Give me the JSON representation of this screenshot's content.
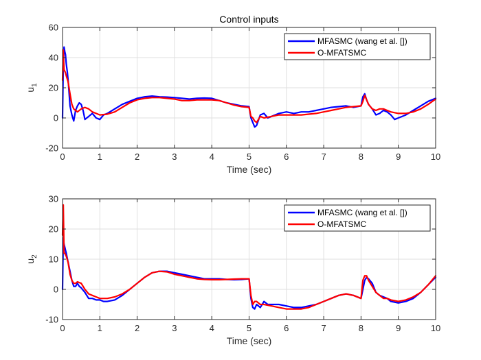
{
  "chart_data": [
    {
      "type": "line",
      "title": "Control inputs",
      "xlabel": "Time (sec)",
      "ylabel": "u",
      "ylabel_sub": "1",
      "xlim": [
        0,
        10
      ],
      "ylim": [
        -20,
        60
      ],
      "xticks": [
        0,
        1,
        2,
        3,
        4,
        5,
        6,
        7,
        8,
        9,
        10
      ],
      "yticks": [
        -20,
        0,
        20,
        40,
        60
      ],
      "grid": true,
      "legend_position": "top-right",
      "series": [
        {
          "name": "MFASMC (wang et al. [])",
          "color": "#0000ff",
          "x": [
            0,
            0.02,
            0.04,
            0.06,
            0.08,
            0.1,
            0.13,
            0.16,
            0.2,
            0.25,
            0.3,
            0.35,
            0.4,
            0.45,
            0.5,
            0.55,
            0.6,
            0.7,
            0.8,
            0.9,
            1.0,
            1.1,
            1.2,
            1.4,
            1.6,
            1.8,
            2.0,
            2.2,
            2.4,
            2.6,
            2.8,
            3.0,
            3.2,
            3.4,
            3.6,
            3.8,
            4.0,
            4.2,
            4.4,
            4.6,
            4.8,
            5.0,
            5.05,
            5.1,
            5.15,
            5.2,
            5.3,
            5.4,
            5.5,
            5.6,
            5.8,
            6.0,
            6.2,
            6.4,
            6.6,
            6.8,
            7.0,
            7.2,
            7.4,
            7.6,
            7.8,
            8.0,
            8.05,
            8.1,
            8.15,
            8.2,
            8.3,
            8.4,
            8.5,
            8.6,
            8.7,
            8.8,
            8.9,
            9.0,
            9.2,
            9.4,
            9.6,
            9.8,
            10.0
          ],
          "y": [
            0,
            35,
            47,
            44,
            42,
            36,
            30,
            22,
            8,
            2,
            -2,
            5,
            8,
            10,
            9,
            5,
            -1,
            1,
            3,
            0,
            -1,
            2,
            3,
            6,
            9,
            11,
            13,
            14,
            14.5,
            14,
            13.8,
            13.5,
            13,
            12.5,
            13,
            13.2,
            13,
            11.5,
            10,
            9,
            8,
            7.5,
            0,
            -3,
            -6,
            -5,
            2,
            3,
            0,
            1,
            3,
            4,
            3,
            4,
            4,
            5,
            6,
            7,
            7.5,
            8,
            7,
            8,
            14,
            16,
            12,
            9,
            6,
            2,
            3,
            5,
            4,
            2,
            -1,
            0,
            2,
            5,
            8,
            11,
            13
          ]
        },
        {
          "name": "O-MFATSMC",
          "color": "#ff0000",
          "x": [
            0,
            0.02,
            0.04,
            0.06,
            0.08,
            0.1,
            0.15,
            0.2,
            0.25,
            0.3,
            0.35,
            0.4,
            0.5,
            0.6,
            0.7,
            0.8,
            0.9,
            1.0,
            1.2,
            1.4,
            1.6,
            1.8,
            2.0,
            2.2,
            2.4,
            2.6,
            2.8,
            3.0,
            3.2,
            3.4,
            3.6,
            3.8,
            4.0,
            4.2,
            4.4,
            4.6,
            4.8,
            5.0,
            5.05,
            5.1,
            5.15,
            5.2,
            5.3,
            5.4,
            5.6,
            5.8,
            6.0,
            6.2,
            6.4,
            6.6,
            6.8,
            7.0,
            7.2,
            7.4,
            7.6,
            7.8,
            8.0,
            8.05,
            8.1,
            8.15,
            8.2,
            8.3,
            8.4,
            8.5,
            8.6,
            8.7,
            8.8,
            9.0,
            9.2,
            9.4,
            9.6,
            9.8,
            10.0
          ],
          "y": [
            25,
            45,
            32,
            31,
            30,
            28,
            24,
            16,
            9,
            6,
            5,
            4,
            6,
            7,
            6,
            4,
            3,
            2,
            2.5,
            4,
            7,
            10,
            12,
            13,
            13.5,
            13.5,
            13,
            12.5,
            11.5,
            11.5,
            12,
            12,
            12,
            11.5,
            10,
            8.5,
            7.5,
            7,
            1,
            0,
            -2,
            -3,
            1,
            0,
            1,
            2,
            2,
            2,
            2,
            2.5,
            3,
            4,
            5,
            6,
            7,
            7.5,
            8,
            11,
            15,
            12,
            9,
            6,
            5,
            6,
            6,
            5,
            4,
            3,
            3,
            4,
            6,
            9,
            12.5
          ]
        }
      ]
    },
    {
      "type": "line",
      "title": "",
      "xlabel": "Time (sec)",
      "ylabel": "u",
      "ylabel_sub": "2",
      "xlim": [
        0,
        10
      ],
      "ylim": [
        -10,
        30
      ],
      "xticks": [
        0,
        1,
        2,
        3,
        4,
        5,
        6,
        7,
        8,
        9,
        10
      ],
      "yticks": [
        -10,
        0,
        10,
        20,
        30
      ],
      "grid": true,
      "legend_position": "top-right",
      "series": [
        {
          "name": "MFASMC (wang et al. [])",
          "color": "#0000ff",
          "x": [
            0,
            0.02,
            0.04,
            0.06,
            0.08,
            0.1,
            0.15,
            0.2,
            0.25,
            0.3,
            0.35,
            0.4,
            0.45,
            0.5,
            0.6,
            0.7,
            0.8,
            0.9,
            1.0,
            1.1,
            1.2,
            1.4,
            1.6,
            1.8,
            2.0,
            2.2,
            2.4,
            2.6,
            2.8,
            3.0,
            3.2,
            3.4,
            3.6,
            3.8,
            4.0,
            4.2,
            4.4,
            4.6,
            4.8,
            5.0,
            5.05,
            5.1,
            5.15,
            5.2,
            5.3,
            5.4,
            5.5,
            5.6,
            5.8,
            6.0,
            6.2,
            6.4,
            6.6,
            6.8,
            7.0,
            7.2,
            7.4,
            7.6,
            7.8,
            8.0,
            8.05,
            8.1,
            8.15,
            8.2,
            8.3,
            8.4,
            8.5,
            8.6,
            8.7,
            8.8,
            9.0,
            9.2,
            9.4,
            9.6,
            9.8,
            10.0
          ],
          "y": [
            0,
            17,
            15,
            14,
            13,
            12,
            9,
            6,
            3,
            1,
            1,
            2,
            1,
            0.5,
            -1,
            -3,
            -3,
            -3.5,
            -3.5,
            -4,
            -4,
            -3.5,
            -2,
            0,
            2,
            4,
            5.5,
            6,
            6,
            5.5,
            5,
            4.5,
            4,
            3.5,
            3.5,
            3.5,
            3.3,
            3.2,
            3.3,
            3.5,
            -3,
            -6,
            -6.5,
            -5,
            -6,
            -4,
            -5,
            -5,
            -5,
            -5.5,
            -6,
            -6,
            -5.5,
            -5,
            -4,
            -3,
            -2,
            -1.5,
            -2,
            -3,
            0,
            3,
            4,
            3.5,
            2,
            -1,
            -2,
            -2.5,
            -3,
            -4,
            -4.5,
            -4,
            -3,
            -1,
            1.5,
            4
          ]
        },
        {
          "name": "O-MFATSMC",
          "color": "#ff0000",
          "x": [
            0,
            0.02,
            0.04,
            0.06,
            0.08,
            0.1,
            0.15,
            0.2,
            0.25,
            0.3,
            0.35,
            0.4,
            0.5,
            0.6,
            0.7,
            0.8,
            0.9,
            1.0,
            1.2,
            1.4,
            1.6,
            1.8,
            2.0,
            2.2,
            2.4,
            2.6,
            2.8,
            3.0,
            3.2,
            3.4,
            3.6,
            3.8,
            4.0,
            4.2,
            4.4,
            4.6,
            4.8,
            5.0,
            5.05,
            5.1,
            5.15,
            5.2,
            5.3,
            5.4,
            5.6,
            5.8,
            6.0,
            6.2,
            6.4,
            6.6,
            6.8,
            7.0,
            7.2,
            7.4,
            7.6,
            7.8,
            8.0,
            8.05,
            8.1,
            8.15,
            8.2,
            8.3,
            8.4,
            8.5,
            8.6,
            8.7,
            8.8,
            9.0,
            9.2,
            9.4,
            9.6,
            9.8,
            10.0
          ],
          "y": [
            18,
            28,
            12,
            12,
            11.5,
            11,
            9,
            5,
            3,
            2,
            2,
            2.5,
            2,
            0,
            -1.5,
            -2,
            -2.5,
            -3,
            -3,
            -2.5,
            -1.5,
            0,
            2,
            4,
            5.5,
            6,
            5.8,
            5,
            4.5,
            4,
            3.5,
            3.3,
            3.2,
            3.2,
            3.3,
            3.4,
            3.5,
            3.5,
            -2,
            -5,
            -4,
            -4,
            -5,
            -5,
            -5.5,
            -6,
            -6.5,
            -6.5,
            -6.5,
            -6,
            -5,
            -4,
            -3,
            -2,
            -1.5,
            -2,
            -3,
            3,
            4.5,
            4.5,
            3,
            1,
            -1,
            -2,
            -3,
            -3,
            -3.5,
            -4,
            -3.5,
            -2.5,
            -1,
            1.5,
            4.5
          ]
        }
      ]
    }
  ]
}
